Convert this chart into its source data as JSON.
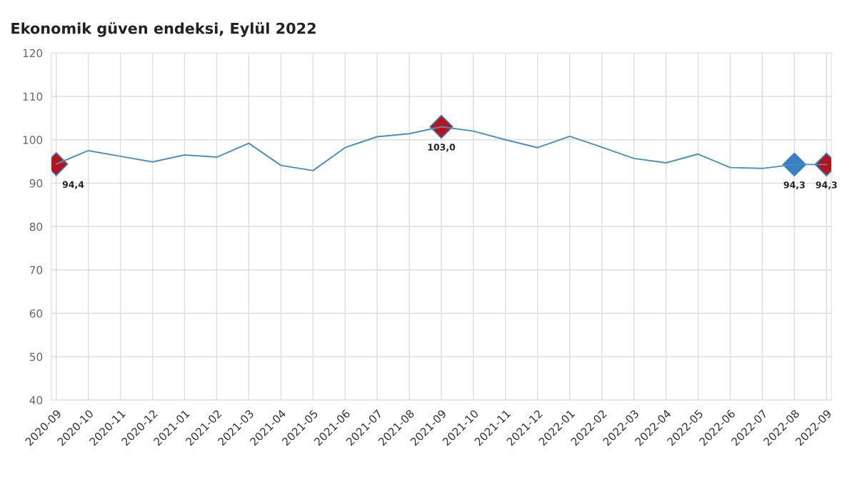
{
  "chart_data": {
    "type": "line",
    "title": "Ekonomik güven endeksi, Eylül 2022",
    "categories": [
      "2020-09",
      "2020-10",
      "2020-11",
      "2020-12",
      "2021-01",
      "2021-02",
      "2021-03",
      "2021-04",
      "2021-05",
      "2021-06",
      "2021-07",
      "2021-08",
      "2021-09",
      "2021-10",
      "2021-11",
      "2021-12",
      "2022-01",
      "2022-02",
      "2022-03",
      "2022-04",
      "2022-05",
      "2022-06",
      "2022-07",
      "2022-08",
      "2022-09"
    ],
    "series": [
      {
        "color": "#4a8fc0",
        "marker": "none",
        "values": [
          94.4,
          97.5,
          96.2,
          94.9,
          96.5,
          96.0,
          99.2,
          94.1,
          92.9,
          98.2,
          100.7,
          101.4,
          103.0,
          102.0,
          100.0,
          98.2,
          100.8,
          98.3,
          95.7,
          94.7,
          96.7,
          93.6,
          93.4,
          94.3,
          94.3
        ]
      },
      {
        "type": "scatter",
        "marker": "diamond",
        "values": [
          94.4,
          null,
          null,
          null,
          null,
          null,
          null,
          null,
          null,
          null,
          null,
          null,
          103.0,
          null,
          null,
          null,
          null,
          null,
          null,
          null,
          null,
          null,
          null,
          94.3,
          94.3
        ],
        "colors": [
          "#b5141c",
          null,
          null,
          null,
          null,
          null,
          null,
          null,
          null,
          null,
          null,
          null,
          "#b5141c",
          null,
          null,
          null,
          null,
          null,
          null,
          null,
          null,
          null,
          null,
          "#3a7fc1",
          "#b5141c"
        ],
        "value_labels": [
          "94,4",
          null,
          null,
          null,
          null,
          null,
          null,
          null,
          null,
          null,
          null,
          null,
          "103,0",
          null,
          null,
          null,
          null,
          null,
          null,
          null,
          null,
          null,
          null,
          "94,3",
          "94,3"
        ]
      }
    ],
    "ylim": [
      40,
      120
    ],
    "yticks": [
      40,
      50,
      60,
      70,
      80,
      90,
      100,
      110,
      120
    ],
    "grid": true,
    "legend": false
  }
}
